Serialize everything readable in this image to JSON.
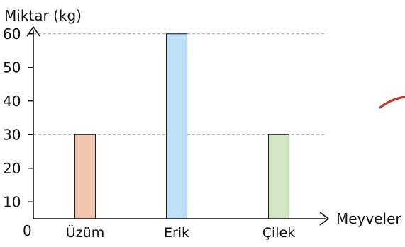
{
  "chart_data": {
    "type": "bar",
    "ylabel": "Miktar (kg)",
    "xlabel": "Meyveler",
    "origin_label": "0",
    "categories": [
      "Üzüm",
      "Erik",
      "Çilek"
    ],
    "values": [
      30,
      60,
      30
    ],
    "bar_colors": [
      "#f2c4ae",
      "#bfe1f8",
      "#d3e6c3"
    ],
    "yticks": [
      10,
      20,
      30,
      40,
      50,
      60
    ],
    "yticks_labels": [
      "10",
      "20",
      "30",
      "40",
      "50",
      "60"
    ],
    "ylim": [
      5,
      63
    ],
    "dashed_reference_lines": [
      30,
      60
    ],
    "grid": false,
    "legend": "none"
  },
  "decoration": {
    "pen_mark_color": "#c0392b"
  }
}
